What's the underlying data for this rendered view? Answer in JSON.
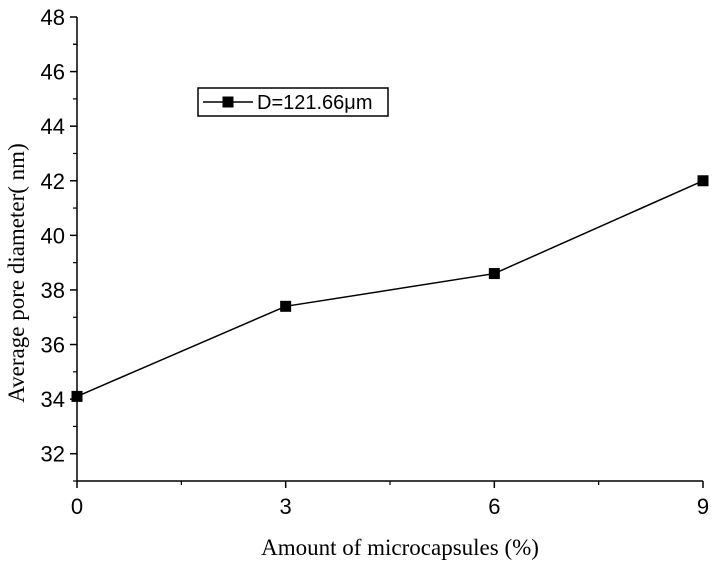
{
  "chart_data": {
    "type": "line",
    "x": [
      0,
      3,
      6,
      9
    ],
    "series": [
      {
        "name": "D=121.66μm",
        "values": [
          34.1,
          37.4,
          38.6,
          42.0
        ],
        "color": "#000000",
        "marker": "square"
      }
    ],
    "xlabel": "Amount of microcapsules (%)",
    "ylabel": "Average pore diameter(  nm)",
    "xlim": [
      0,
      9
    ],
    "ylim": [
      31,
      48
    ],
    "xticks": [
      0,
      3,
      6,
      9
    ],
    "xtick_labels": [
      "0",
      "3",
      "6",
      "9"
    ],
    "yticks": [
      32,
      34,
      36,
      38,
      40,
      42,
      44,
      46,
      48
    ],
    "ytick_labels": [
      "32",
      "34",
      "36",
      "38",
      "40",
      "42",
      "44",
      "46",
      "48"
    ],
    "grid": false,
    "legend_position": "top-left"
  }
}
